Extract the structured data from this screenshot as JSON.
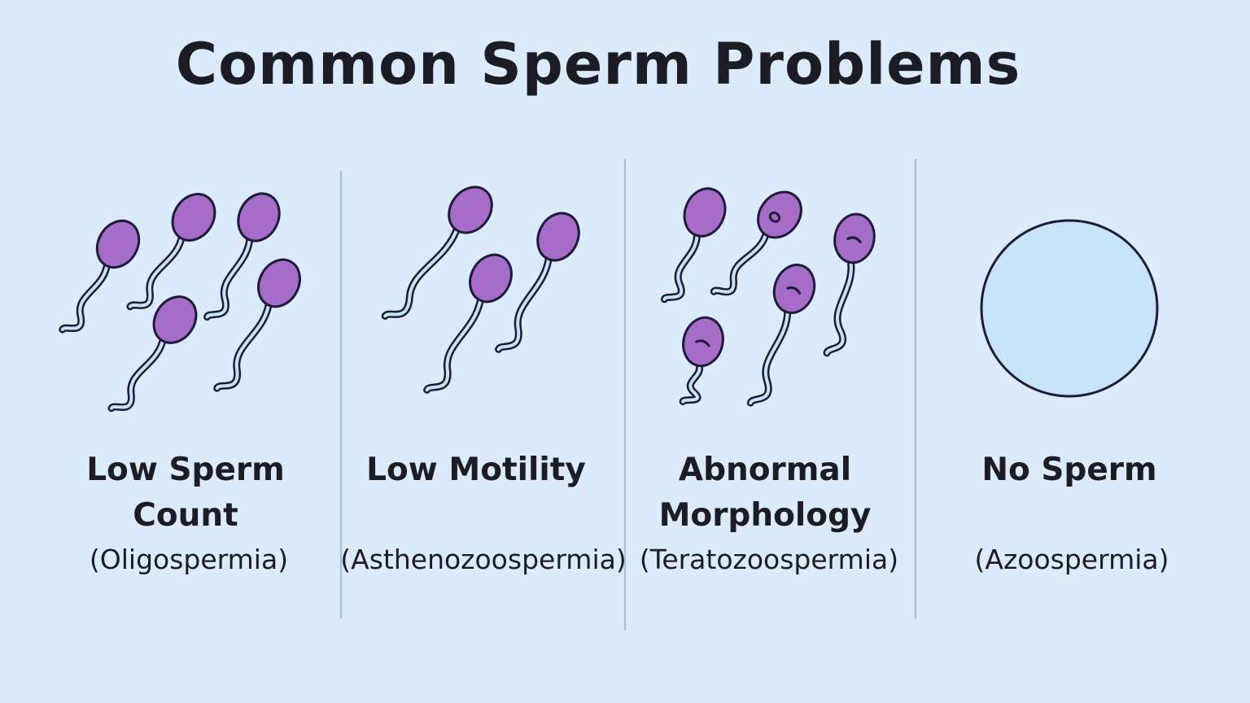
{
  "title": "Common Sperm Problems",
  "colors": {
    "background": "#dcebfb",
    "head": "#a56cc8",
    "outline": "#1e1b3a",
    "tail": "#c5e3f3",
    "empty_circle": "#c7e3f8",
    "divider": "#a9c3d6"
  },
  "panels": [
    {
      "label_line1": "Low Sperm",
      "label_line2": "Count",
      "subtitle": "(Oligospermia)",
      "illustration": "sparse-sperm"
    },
    {
      "label_line1": "Low Motility",
      "label_line2": "",
      "subtitle": "(Asthenozoospermia)",
      "illustration": "sluggish-sperm"
    },
    {
      "label_line1": "Abnormal",
      "label_line2": "Morphology",
      "subtitle": "(Teratozoospermia)",
      "illustration": "misshapen-sperm"
    },
    {
      "label_line1": "No Sperm",
      "label_line2": "",
      "subtitle": "(Azoospermia)",
      "illustration": "empty-circle"
    }
  ]
}
